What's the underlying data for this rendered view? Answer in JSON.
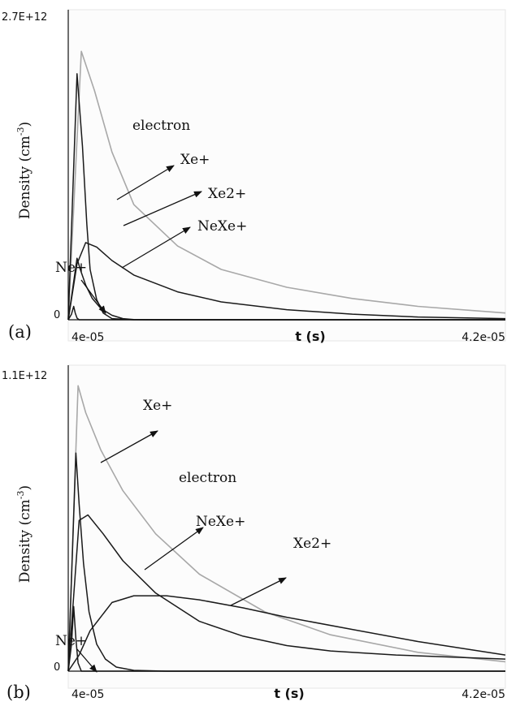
{
  "colors": {
    "electron": "#a8a8a8",
    "ion": "#1a1a1a",
    "axis": "#111111",
    "arrow": "#111111"
  },
  "chart_data": [
    {
      "type": "line",
      "panel_label": "(a)",
      "xlabel": "t (s)",
      "ylabel": "Density (cm",
      "ylabel_sup": "-3",
      "ylabel_end": ")",
      "xlim": [
        4e-05,
        4.2e-05
      ],
      "ylim": [
        0,
        2700000000000.0
      ],
      "xtick_labels": [
        "4e-05",
        "4.2e-05"
      ],
      "ytick_labels": [
        "0",
        "2.7E+12"
      ],
      "series": [
        {
          "name": "electron",
          "x": [
            4e-05,
            4.006e-05,
            4.012e-05,
            4.02e-05,
            4.03e-05,
            4.05e-05,
            4.07e-05,
            4.1e-05,
            4.13e-05,
            4.16e-05,
            4.2e-05
          ],
          "y": [
            0,
            2400000000000.0,
            2050000000000.0,
            1500000000000.0,
            1030000000000.0,
            660000000000.0,
            450000000000.0,
            290000000000.0,
            190000000000.0,
            120000000000.0,
            60000000000.0
          ]
        },
        {
          "name": "Xe+",
          "x": [
            4e-05,
            4.004e-05,
            4.0065e-05,
            4.0085e-05,
            4.01e-05,
            4.013e-05,
            4.016e-05,
            4.02e-05,
            4.03e-05,
            4.05e-05,
            4.2e-05
          ],
          "y": [
            0,
            2200000000000.0,
            1550000000000.0,
            850000000000.0,
            450000000000.0,
            180000000000.0,
            60000000000.0,
            10000000000.0,
            0,
            0,
            0
          ]
        },
        {
          "name": "Xe2+",
          "x": [
            4e-05,
            4.004e-05,
            4.008e-05,
            4.013e-05,
            4.02e-05,
            4.03e-05,
            4.05e-05,
            4.07e-05,
            4.1e-05,
            4.13e-05,
            4.16e-05,
            4.2e-05
          ],
          "y": [
            0,
            500000000000.0,
            690000000000.0,
            650000000000.0,
            530000000000.0,
            400000000000.0,
            250000000000.0,
            160000000000.0,
            90000000000.0,
            50000000000.0,
            25000000000.0,
            10000000000.0
          ]
        },
        {
          "name": "NeXe+",
          "x": [
            4e-05,
            4.004e-05,
            4.0055e-05,
            4.008e-05,
            4.011e-05,
            4.015e-05,
            4.02e-05,
            4.025e-05,
            4.03e-05,
            4.04e-05,
            4.2e-05
          ],
          "y": [
            0,
            550000000000.0,
            450000000000.0,
            310000000000.0,
            190000000000.0,
            100000000000.0,
            40000000000.0,
            10000000000.0,
            2000000000.0,
            0,
            0
          ]
        },
        {
          "name": "Ne+",
          "x": [
            4e-05,
            4.0015e-05,
            4.0025e-05,
            4.0032e-05,
            4.004e-05,
            4.005e-05,
            4.2e-05
          ],
          "y": [
            0,
            50000000000.0,
            120000000000.0,
            60000000000.0,
            15000000000.0,
            0,
            0
          ]
        }
      ],
      "annotations": [
        "electron",
        "Xe+",
        "Xe2+",
        "NeXe+",
        "Ne+"
      ]
    },
    {
      "type": "line",
      "panel_label": "(b)",
      "xlabel": "t (s)",
      "ylabel": "Density (cm",
      "ylabel_sup": "-3",
      "ylabel_end": ")",
      "xlim": [
        4e-05,
        4.2e-05
      ],
      "ylim": [
        0,
        1100000000000.0
      ],
      "xtick_labels": [
        "4e-05",
        "4.2e-05"
      ],
      "ytick_labels": [
        "0",
        "1.1E+12"
      ],
      "series": [
        {
          "name": "electron",
          "x": [
            4e-05,
            4.0045e-05,
            4.008e-05,
            4.015e-05,
            4.025e-05,
            4.04e-05,
            4.06e-05,
            4.09e-05,
            4.12e-05,
            4.16e-05,
            4.2e-05
          ],
          "y": [
            0,
            1060000000000.0,
            960000000000.0,
            820000000000.0,
            670000000000.0,
            510000000000.0,
            360000000000.0,
            220000000000.0,
            135000000000.0,
            70000000000.0,
            35000000000.0
          ]
        },
        {
          "name": "Xe+",
          "x": [
            4e-05,
            4.0035e-05,
            4.005e-05,
            4.007e-05,
            4.0095e-05,
            4.013e-05,
            4.017e-05,
            4.022e-05,
            4.03e-05,
            4.045e-05,
            4.2e-05
          ],
          "y": [
            0,
            810000000000.0,
            620000000000.0,
            400000000000.0,
            220000000000.0,
            100000000000.0,
            45000000000.0,
            15000000000.0,
            3000000000.0,
            0,
            0
          ]
        },
        {
          "name": "NeXe+",
          "x": [
            4e-05,
            4.005e-05,
            4.009e-05,
            4.016e-05,
            4.025e-05,
            4.04e-05,
            4.06e-05,
            4.08e-05,
            4.1e-05,
            4.12e-05,
            4.15e-05,
            4.2e-05
          ],
          "y": [
            0,
            560000000000.0,
            580000000000.0,
            510000000000.0,
            410000000000.0,
            290000000000.0,
            185000000000.0,
            130000000000.0,
            95000000000.0,
            75000000000.0,
            60000000000.0,
            45000000000.0
          ]
        },
        {
          "name": "Xe2+",
          "x": [
            4e-05,
            4.005e-05,
            4.01e-05,
            4.02e-05,
            4.03e-05,
            4.045e-05,
            4.06e-05,
            4.08e-05,
            4.1e-05,
            4.13e-05,
            4.16e-05,
            4.2e-05
          ],
          "y": [
            0,
            60000000000.0,
            150000000000.0,
            255000000000.0,
            280000000000.0,
            280000000000.0,
            265000000000.0,
            235000000000.0,
            200000000000.0,
            155000000000.0,
            110000000000.0,
            60000000000.0
          ]
        },
        {
          "name": "Ne+",
          "x": [
            4e-05,
            4.0015e-05,
            4.0025e-05,
            4.0035e-05,
            4.0045e-05,
            4.006e-05,
            4.2e-05
          ],
          "y": [
            0,
            100000000000.0,
            240000000000.0,
            120000000000.0,
            30000000000.0,
            0,
            0
          ]
        }
      ],
      "annotations": [
        "Xe+",
        "electron",
        "NeXe+",
        "Xe2+",
        "Ne+"
      ]
    }
  ]
}
